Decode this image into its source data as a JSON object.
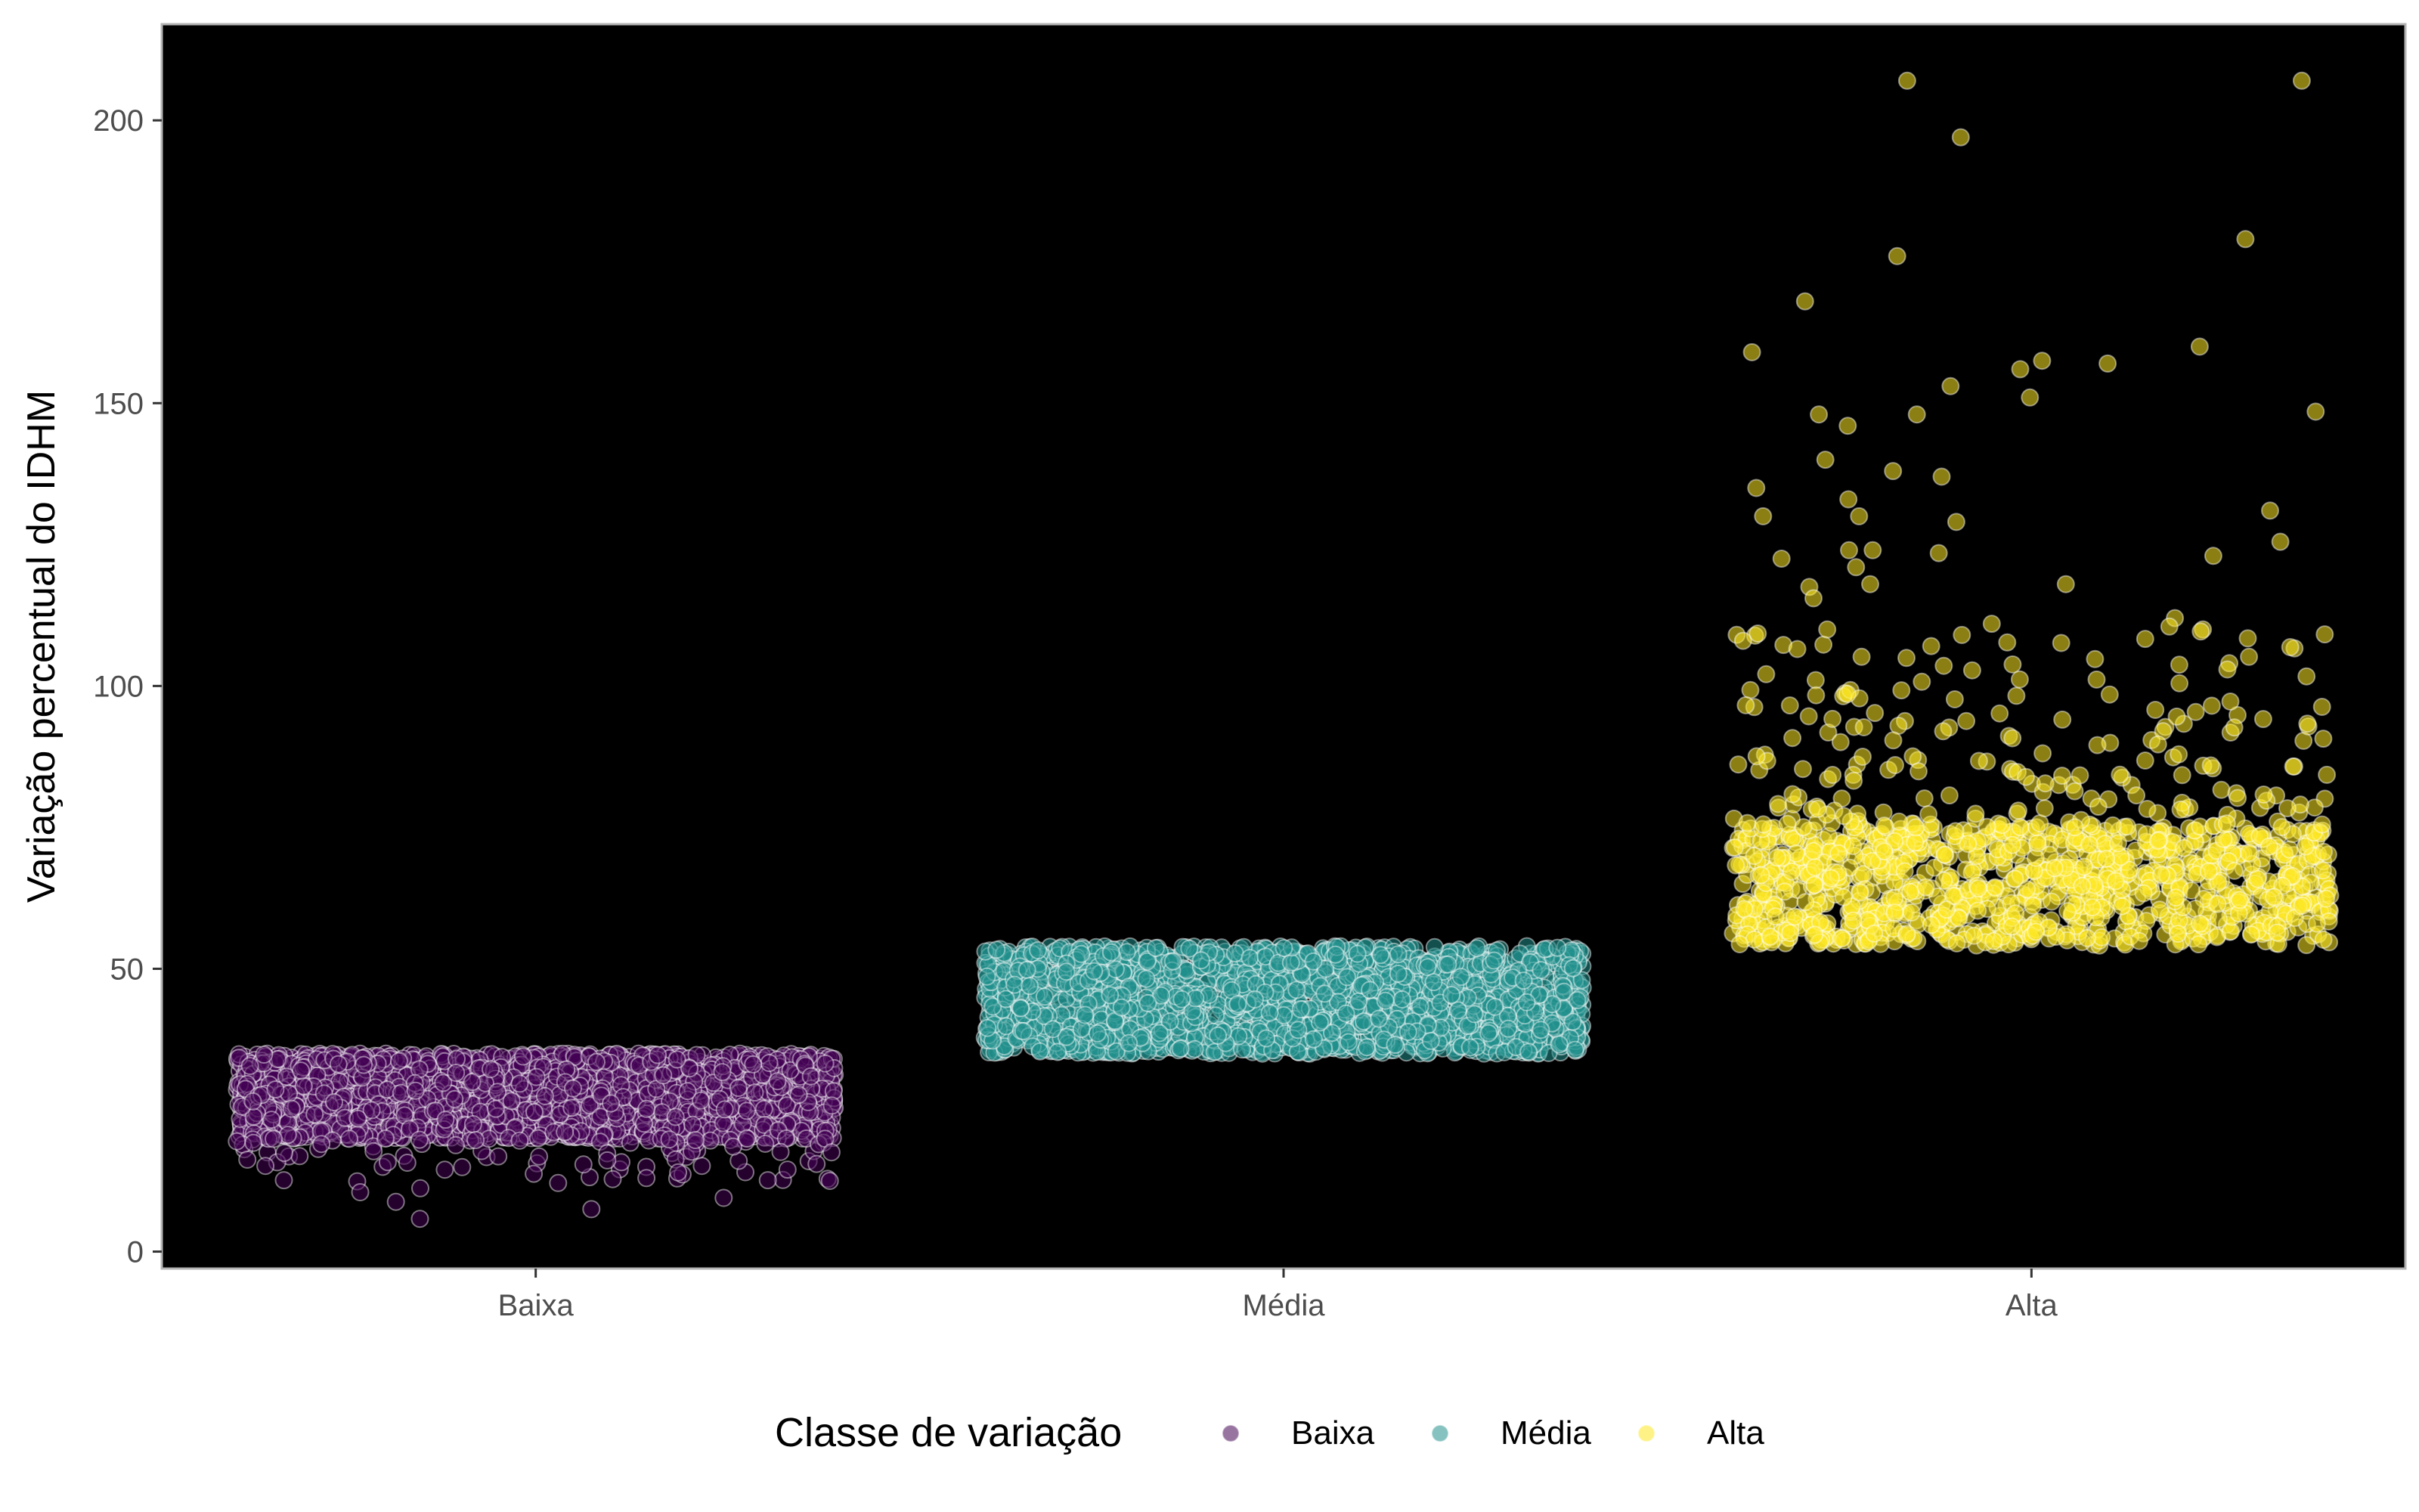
{
  "chart_data": {
    "type": "scatter",
    "subtype": "jitter-strip",
    "title": "",
    "xlabel": "",
    "ylabel": "Variação percentual do IDHM",
    "categories": [
      "Baixa",
      "Média",
      "Alta"
    ],
    "ylim": [
      -3,
      217
    ],
    "yticks": [
      0,
      50,
      100,
      150,
      200
    ],
    "grid": false,
    "background": "#000000",
    "legend": {
      "title": "Classe de variação",
      "position": "bottom",
      "entries": [
        {
          "label": "Baixa",
          "color": "#440154"
        },
        {
          "label": "Média",
          "color": "#21908C"
        },
        {
          "label": "Alta",
          "color": "#FDE725"
        }
      ]
    },
    "series": [
      {
        "name": "Baixa",
        "category": "Baixa",
        "color": "#440154",
        "range": [
          5.8,
          35
        ],
        "dense_band": [
          20,
          35
        ],
        "n_points": 2600,
        "outliers": [
          5.8,
          7.5,
          8.8,
          9.5,
          10.5,
          11.2,
          12.5,
          13.0,
          14.0,
          14.5,
          15.5
        ]
      },
      {
        "name": "Média",
        "category": "Média",
        "color": "#21908C",
        "range": [
          35,
          54
        ],
        "dense_band": [
          35,
          54
        ],
        "n_points": 2300,
        "outliers": []
      },
      {
        "name": "Alta",
        "category": "Alta",
        "color": "#FDE725",
        "range": [
          54,
          207
        ],
        "dense_band": [
          54,
          75
        ],
        "n_points": 1100,
        "outliers": [
          207,
          207,
          197,
          179,
          176,
          168,
          160,
          159,
          157.5,
          157,
          156,
          153,
          151,
          148.5,
          148,
          148,
          146,
          140,
          138,
          137,
          135,
          133,
          131,
          130,
          130,
          129,
          125.5,
          124,
          124,
          123.5,
          123,
          122.5,
          121,
          118,
          118,
          117.5,
          115.5,
          112,
          111,
          110.5,
          110
        ]
      }
    ]
  }
}
